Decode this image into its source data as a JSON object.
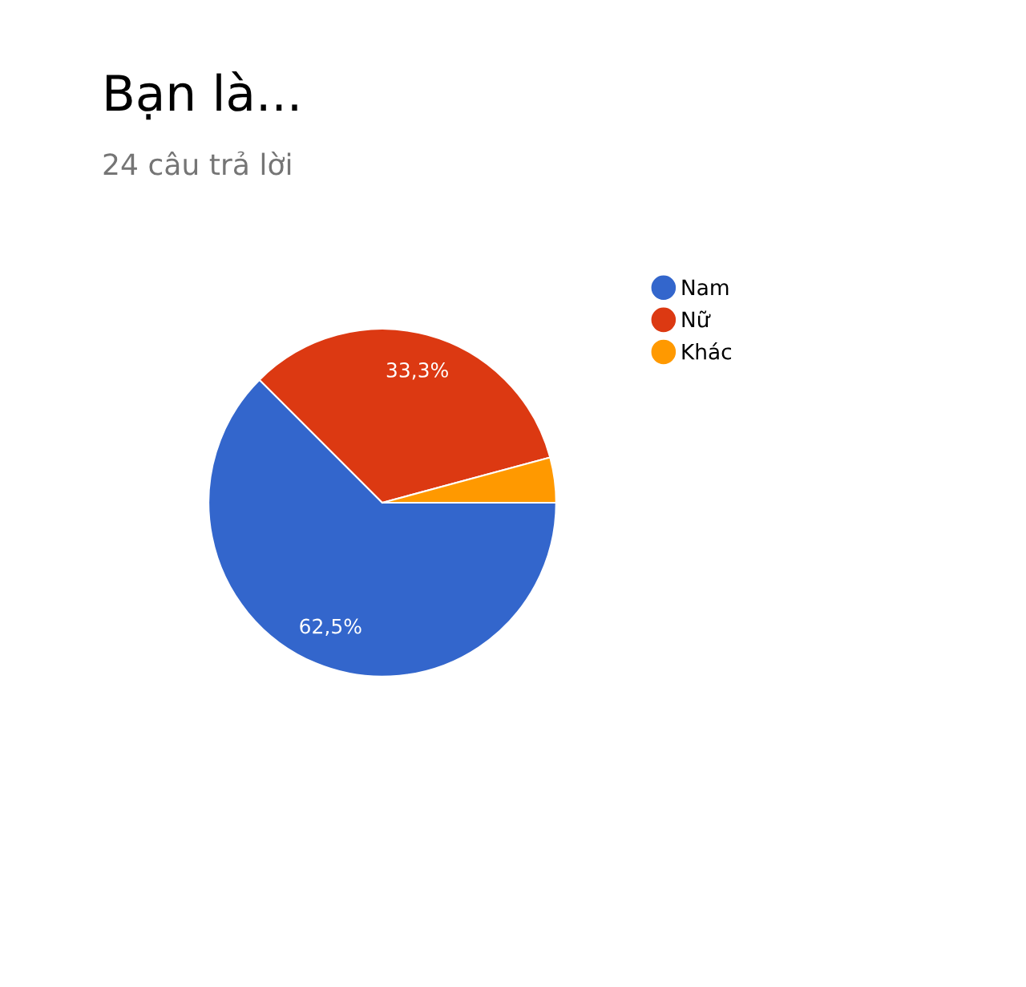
{
  "chart_data": {
    "type": "pie",
    "title": "Bạn là...",
    "subtitle": "24 câu trả lời",
    "categories": [
      "Nam",
      "Nữ",
      "Khác"
    ],
    "values": [
      62.5,
      33.3,
      4.2
    ],
    "colors": [
      "#3366cc",
      "#dc3912",
      "#ff9900"
    ],
    "value_labels": [
      "62,5%",
      "33,3%",
      null
    ],
    "legend": "top right"
  }
}
